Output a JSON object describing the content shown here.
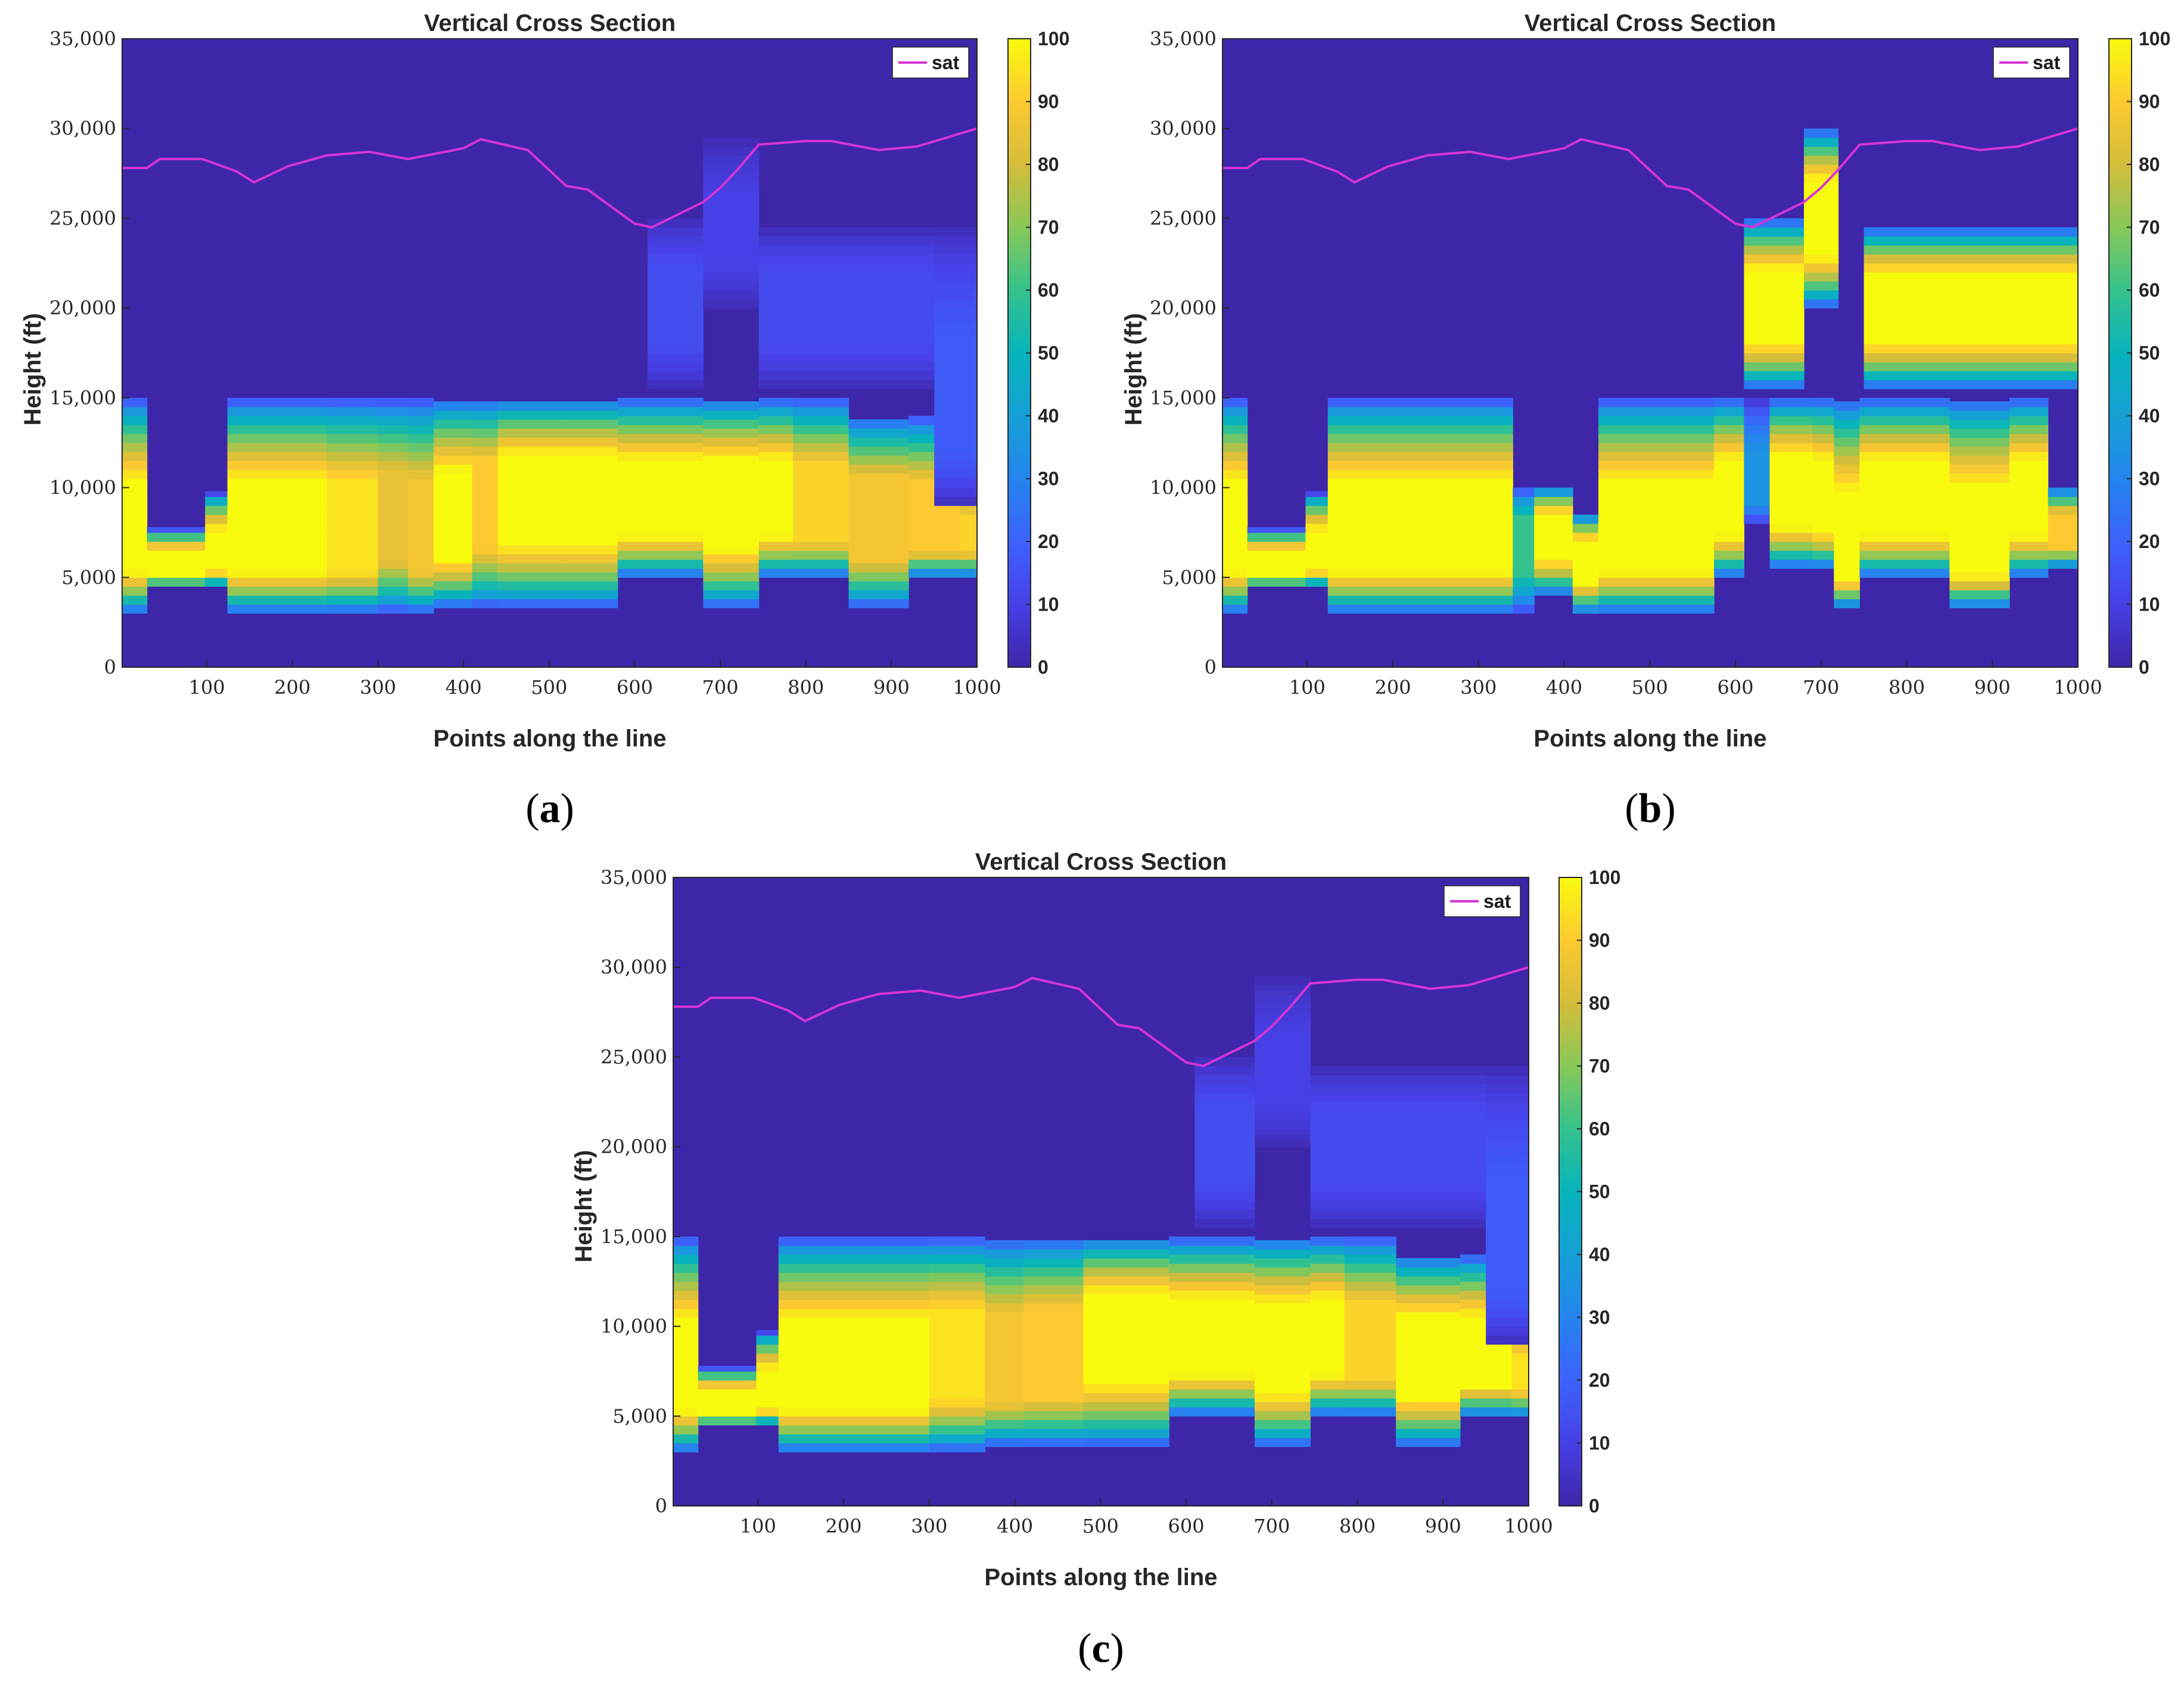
{
  "chart_data": [
    {
      "panel": "a",
      "type": "heatmap",
      "title": "Vertical Cross Section",
      "xlabel": "Points along the line",
      "ylabel": "Height (ft)",
      "xlim": [
        1,
        1000
      ],
      "ylim": [
        0,
        35000
      ],
      "xticks": [
        100,
        200,
        300,
        400,
        500,
        600,
        700,
        800,
        900,
        1000
      ],
      "xtick_labels": [
        "100",
        "200",
        "300",
        "400",
        "500",
        "600",
        "700",
        "800",
        "900",
        "1000"
      ],
      "yticks": [
        0,
        5000,
        10000,
        15000,
        20000,
        25000,
        30000,
        35000
      ],
      "ytick_labels": [
        "0",
        "5,000",
        "10,000",
        "15,000",
        "20,000",
        "25,000",
        "30,000",
        "35,000"
      ],
      "colorbar": {
        "min": 0,
        "max": 100,
        "ticks": [
          0,
          10,
          20,
          30,
          40,
          50,
          60,
          70,
          80,
          90,
          100
        ],
        "tick_labels": [
          "0",
          "10",
          "20",
          "30",
          "40",
          "50",
          "60",
          "70",
          "80",
          "90",
          "100"
        ],
        "colormap": "parula"
      },
      "legend": {
        "entries": [
          "sat"
        ],
        "location": "top-right",
        "color": "#d633d6"
      },
      "blocks": [
        {
          "x0": 1,
          "x1": 30,
          "lo": 3000,
          "hi": 15000,
          "peak": 100,
          "pc": 7000
        },
        {
          "x0": 30,
          "x1": 98,
          "lo": 4500,
          "hi": 7800,
          "peak": 100,
          "pc": 5500
        },
        {
          "x0": 98,
          "x1": 124,
          "lo": 4500,
          "hi": 9800,
          "peak": 100,
          "pc": 6000
        },
        {
          "x0": 124,
          "x1": 240,
          "lo": 3000,
          "hi": 15000,
          "peak": 100,
          "pc": 7000
        },
        {
          "x0": 240,
          "x1": 300,
          "lo": 3000,
          "hi": 15000,
          "peak": 95,
          "pc": 7000
        },
        {
          "x0": 300,
          "x1": 335,
          "lo": 3000,
          "hi": 15000,
          "peak": 85,
          "pc": 8000
        },
        {
          "x0": 335,
          "x1": 365,
          "lo": 3000,
          "hi": 15000,
          "peak": 88,
          "pc": 7000
        },
        {
          "x0": 365,
          "x1": 410,
          "lo": 3300,
          "hi": 15000,
          "peak": 100,
          "pc": 8000
        },
        {
          "x0": 410,
          "x1": 440,
          "lo": 3300,
          "hi": 15000,
          "peak": 90,
          "pc": 9000
        },
        {
          "x0": 440,
          "x1": 520,
          "lo": 3300,
          "hi": 15000,
          "peak": 100,
          "pc": 9500
        },
        {
          "x0": 520,
          "x1": 580,
          "lo": 3300,
          "hi": 15000,
          "peak": 100,
          "pc": 9500
        },
        {
          "x0": 580,
          "x1": 680,
          "lo": 5000,
          "hi": 15000,
          "peak": 100,
          "pc": 9000
        },
        {
          "x0": 680,
          "x1": 745,
          "lo": 3300,
          "hi": 15000,
          "peak": 100,
          "pc": 9000
        },
        {
          "x0": 745,
          "x1": 785,
          "lo": 5000,
          "hi": 15000,
          "peak": 100,
          "pc": 9000
        },
        {
          "x0": 785,
          "x1": 850,
          "lo": 5000,
          "hi": 15000,
          "peak": 92,
          "pc": 8500
        },
        {
          "x0": 850,
          "x1": 920,
          "lo": 3300,
          "hi": 14000,
          "peak": 88,
          "pc": 8000
        },
        {
          "x0": 920,
          "x1": 980,
          "lo": 5000,
          "hi": 14000,
          "peak": 90,
          "pc": 7500
        },
        {
          "x0": 980,
          "x1": 1000,
          "lo": 5000,
          "hi": 10000,
          "peak": 92,
          "pc": 7500
        },
        {
          "x0": 615,
          "x1": 680,
          "lo": 15500,
          "hi": 25000,
          "peak": 14,
          "pc": 20000
        },
        {
          "x0": 680,
          "x1": 745,
          "lo": 20000,
          "hi": 29500,
          "peak": 10,
          "pc": 24000
        },
        {
          "x0": 745,
          "x1": 950,
          "lo": 15500,
          "hi": 24500,
          "peak": 13,
          "pc": 20000
        },
        {
          "x0": 950,
          "x1": 1000,
          "lo": 9000,
          "hi": 24500,
          "peak": 18,
          "pc": 14000
        }
      ],
      "sat_line": {
        "name": "sat",
        "x": [
          1,
          30,
          45,
          95,
          135,
          155,
          195,
          240,
          290,
          335,
          400,
          420,
          475,
          520,
          545,
          600,
          620,
          680,
          700,
          720,
          745,
          800,
          830,
          885,
          930,
          1000
        ],
        "y": [
          27800,
          27800,
          28300,
          28300,
          27600,
          27000,
          27900,
          28500,
          28700,
          28300,
          28900,
          29400,
          28800,
          26800,
          26600,
          24700,
          24500,
          25900,
          26700,
          27700,
          29100,
          29300,
          29300,
          28800,
          29000,
          30000
        ]
      }
    },
    {
      "panel": "b",
      "type": "heatmap",
      "title": "Vertical Cross Section",
      "xlabel": "Points along the line",
      "ylabel": "Height (ft)",
      "xlim": [
        1,
        1000
      ],
      "ylim": [
        0,
        35000
      ],
      "xticks": [
        100,
        200,
        300,
        400,
        500,
        600,
        700,
        800,
        900,
        1000
      ],
      "xtick_labels": [
        "100",
        "200",
        "300",
        "400",
        "500",
        "600",
        "700",
        "800",
        "900",
        "1000"
      ],
      "yticks": [
        0,
        5000,
        10000,
        15000,
        20000,
        25000,
        30000,
        35000
      ],
      "ytick_labels": [
        "0",
        "5,000",
        "10,000",
        "15,000",
        "20,000",
        "25,000",
        "30,000",
        "35,000"
      ],
      "colorbar": {
        "min": 0,
        "max": 100,
        "ticks": [
          0,
          10,
          20,
          30,
          40,
          50,
          60,
          70,
          80,
          90,
          100
        ],
        "tick_labels": [
          "0",
          "10",
          "20",
          "30",
          "40",
          "50",
          "60",
          "70",
          "80",
          "90",
          "100"
        ],
        "colormap": "parula"
      },
      "legend": {
        "entries": [
          "sat"
        ],
        "location": "top-right",
        "color": "#d633d6"
      },
      "blocks": [
        {
          "x0": 1,
          "x1": 30,
          "lo": 3000,
          "hi": 15000,
          "peak": 100,
          "pc": 7000
        },
        {
          "x0": 30,
          "x1": 98,
          "lo": 4500,
          "hi": 7800,
          "peak": 100,
          "pc": 5500
        },
        {
          "x0": 98,
          "x1": 124,
          "lo": 4500,
          "hi": 9800,
          "peak": 100,
          "pc": 6000
        },
        {
          "x0": 124,
          "x1": 340,
          "lo": 3000,
          "hi": 15000,
          "peak": 100,
          "pc": 7000
        },
        {
          "x0": 340,
          "x1": 365,
          "lo": 3000,
          "hi": 10000,
          "peak": 60,
          "pc": 7000
        },
        {
          "x0": 365,
          "x1": 410,
          "lo": 4000,
          "hi": 10000,
          "peak": 100,
          "pc": 7500
        },
        {
          "x0": 410,
          "x1": 440,
          "lo": 3000,
          "hi": 8500,
          "peak": 100,
          "pc": 6000
        },
        {
          "x0": 440,
          "x1": 575,
          "lo": 3000,
          "hi": 15000,
          "peak": 100,
          "pc": 7000
        },
        {
          "x0": 575,
          "x1": 610,
          "lo": 5000,
          "hi": 15000,
          "peak": 100,
          "pc": 9000
        },
        {
          "x0": 610,
          "x1": 640,
          "lo": 8000,
          "hi": 15000,
          "peak": 35,
          "pc": 10000
        },
        {
          "x0": 640,
          "x1": 690,
          "lo": 5500,
          "hi": 15000,
          "peak": 100,
          "pc": 9500
        },
        {
          "x0": 690,
          "x1": 715,
          "lo": 5500,
          "hi": 15000,
          "peak": 100,
          "pc": 9000
        },
        {
          "x0": 715,
          "x1": 745,
          "lo": 3300,
          "hi": 15000,
          "peak": 100,
          "pc": 6000
        },
        {
          "x0": 745,
          "x1": 850,
          "lo": 5000,
          "hi": 15000,
          "peak": 100,
          "pc": 9000
        },
        {
          "x0": 850,
          "x1": 920,
          "lo": 3300,
          "hi": 15000,
          "peak": 100,
          "pc": 6500
        },
        {
          "x0": 920,
          "x1": 965,
          "lo": 5000,
          "hi": 15000,
          "peak": 100,
          "pc": 9000
        },
        {
          "x0": 965,
          "x1": 1000,
          "lo": 5500,
          "hi": 10000,
          "peak": 90,
          "pc": 7500
        },
        {
          "x0": 610,
          "x1": 680,
          "lo": 15500,
          "hi": 25000,
          "peak": 100,
          "pc": 20000
        },
        {
          "x0": 680,
          "x1": 720,
          "lo": 20000,
          "hi": 30000,
          "peak": 100,
          "pc": 25000
        },
        {
          "x0": 750,
          "x1": 1000,
          "lo": 15500,
          "hi": 24500,
          "peak": 100,
          "pc": 20000
        }
      ],
      "sat_line": {
        "name": "sat",
        "x": [
          1,
          30,
          45,
          95,
          135,
          155,
          195,
          240,
          290,
          335,
          400,
          420,
          475,
          520,
          545,
          600,
          620,
          680,
          700,
          720,
          745,
          800,
          830,
          885,
          930,
          1000
        ],
        "y": [
          27800,
          27800,
          28300,
          28300,
          27600,
          27000,
          27900,
          28500,
          28700,
          28300,
          28900,
          29400,
          28800,
          26800,
          26600,
          24700,
          24500,
          25900,
          26700,
          27700,
          29100,
          29300,
          29300,
          28800,
          29000,
          30000
        ]
      }
    },
    {
      "panel": "c",
      "type": "heatmap",
      "title": "Vertical Cross Section",
      "xlabel": "Points along the line",
      "ylabel": "Height (ft)",
      "xlim": [
        1,
        1000
      ],
      "ylim": [
        0,
        35000
      ],
      "xticks": [
        100,
        200,
        300,
        400,
        500,
        600,
        700,
        800,
        900,
        1000
      ],
      "xtick_labels": [
        "100",
        "200",
        "300",
        "400",
        "500",
        "600",
        "700",
        "800",
        "900",
        "1000"
      ],
      "yticks": [
        0,
        5000,
        10000,
        15000,
        20000,
        25000,
        30000,
        35000
      ],
      "ytick_labels": [
        "0",
        "5,000",
        "10,000",
        "15,000",
        "20,000",
        "25,000",
        "30,000",
        "35,000"
      ],
      "colorbar": {
        "min": 0,
        "max": 100,
        "ticks": [
          0,
          10,
          20,
          30,
          40,
          50,
          60,
          70,
          80,
          90,
          100
        ],
        "tick_labels": [
          "0",
          "10",
          "20",
          "30",
          "40",
          "50",
          "60",
          "70",
          "80",
          "90",
          "100"
        ],
        "colormap": "parula"
      },
      "legend": {
        "entries": [
          "sat"
        ],
        "location": "top-right",
        "color": "#d633d6"
      },
      "blocks": [
        {
          "x0": 1,
          "x1": 30,
          "lo": 3000,
          "hi": 15000,
          "peak": 100,
          "pc": 7000
        },
        {
          "x0": 30,
          "x1": 98,
          "lo": 4500,
          "hi": 7800,
          "peak": 100,
          "pc": 5500
        },
        {
          "x0": 98,
          "x1": 124,
          "lo": 4500,
          "hi": 9800,
          "peak": 100,
          "pc": 6000
        },
        {
          "x0": 124,
          "x1": 300,
          "lo": 3000,
          "hi": 15000,
          "peak": 100,
          "pc": 7000
        },
        {
          "x0": 300,
          "x1": 365,
          "lo": 3000,
          "hi": 15000,
          "peak": 95,
          "pc": 8000
        },
        {
          "x0": 365,
          "x1": 410,
          "lo": 3300,
          "hi": 15000,
          "peak": 88,
          "pc": 7500
        },
        {
          "x0": 410,
          "x1": 480,
          "lo": 3300,
          "hi": 15000,
          "peak": 90,
          "pc": 8000
        },
        {
          "x0": 480,
          "x1": 580,
          "lo": 3300,
          "hi": 15000,
          "peak": 100,
          "pc": 9500
        },
        {
          "x0": 580,
          "x1": 680,
          "lo": 5000,
          "hi": 15000,
          "peak": 100,
          "pc": 9000
        },
        {
          "x0": 680,
          "x1": 745,
          "lo": 3300,
          "hi": 15000,
          "peak": 100,
          "pc": 8500
        },
        {
          "x0": 745,
          "x1": 785,
          "lo": 5000,
          "hi": 15000,
          "peak": 100,
          "pc": 9000
        },
        {
          "x0": 785,
          "x1": 845,
          "lo": 5000,
          "hi": 15000,
          "peak": 92,
          "pc": 8500
        },
        {
          "x0": 845,
          "x1": 920,
          "lo": 3300,
          "hi": 14000,
          "peak": 100,
          "pc": 8000
        },
        {
          "x0": 920,
          "x1": 980,
          "lo": 5000,
          "hi": 14000,
          "peak": 100,
          "pc": 8000
        },
        {
          "x0": 980,
          "x1": 1000,
          "lo": 5000,
          "hi": 10000,
          "peak": 95,
          "pc": 7500
        },
        {
          "x0": 610,
          "x1": 680,
          "lo": 15500,
          "hi": 25000,
          "peak": 14,
          "pc": 20000
        },
        {
          "x0": 680,
          "x1": 745,
          "lo": 20000,
          "hi": 29500,
          "peak": 10,
          "pc": 24000
        },
        {
          "x0": 745,
          "x1": 950,
          "lo": 15500,
          "hi": 24500,
          "peak": 13,
          "pc": 20000
        },
        {
          "x0": 950,
          "x1": 1000,
          "lo": 9000,
          "hi": 24500,
          "peak": 18,
          "pc": 14000
        }
      ],
      "sat_line": {
        "name": "sat",
        "x": [
          1,
          30,
          45,
          95,
          135,
          155,
          195,
          240,
          290,
          335,
          400,
          420,
          475,
          520,
          545,
          600,
          620,
          680,
          700,
          720,
          745,
          800,
          830,
          885,
          930,
          1000
        ],
        "y": [
          27800,
          27800,
          28300,
          28300,
          27600,
          27000,
          27900,
          28500,
          28700,
          28300,
          28900,
          29400,
          28800,
          26800,
          26600,
          24700,
          24500,
          25900,
          26700,
          27700,
          29100,
          29300,
          29300,
          28800,
          29000,
          30000
        ]
      }
    }
  ],
  "captions": [
    "(a)",
    "(b)",
    "(c)"
  ],
  "caption_letters": [
    "a",
    "b",
    "c"
  ]
}
